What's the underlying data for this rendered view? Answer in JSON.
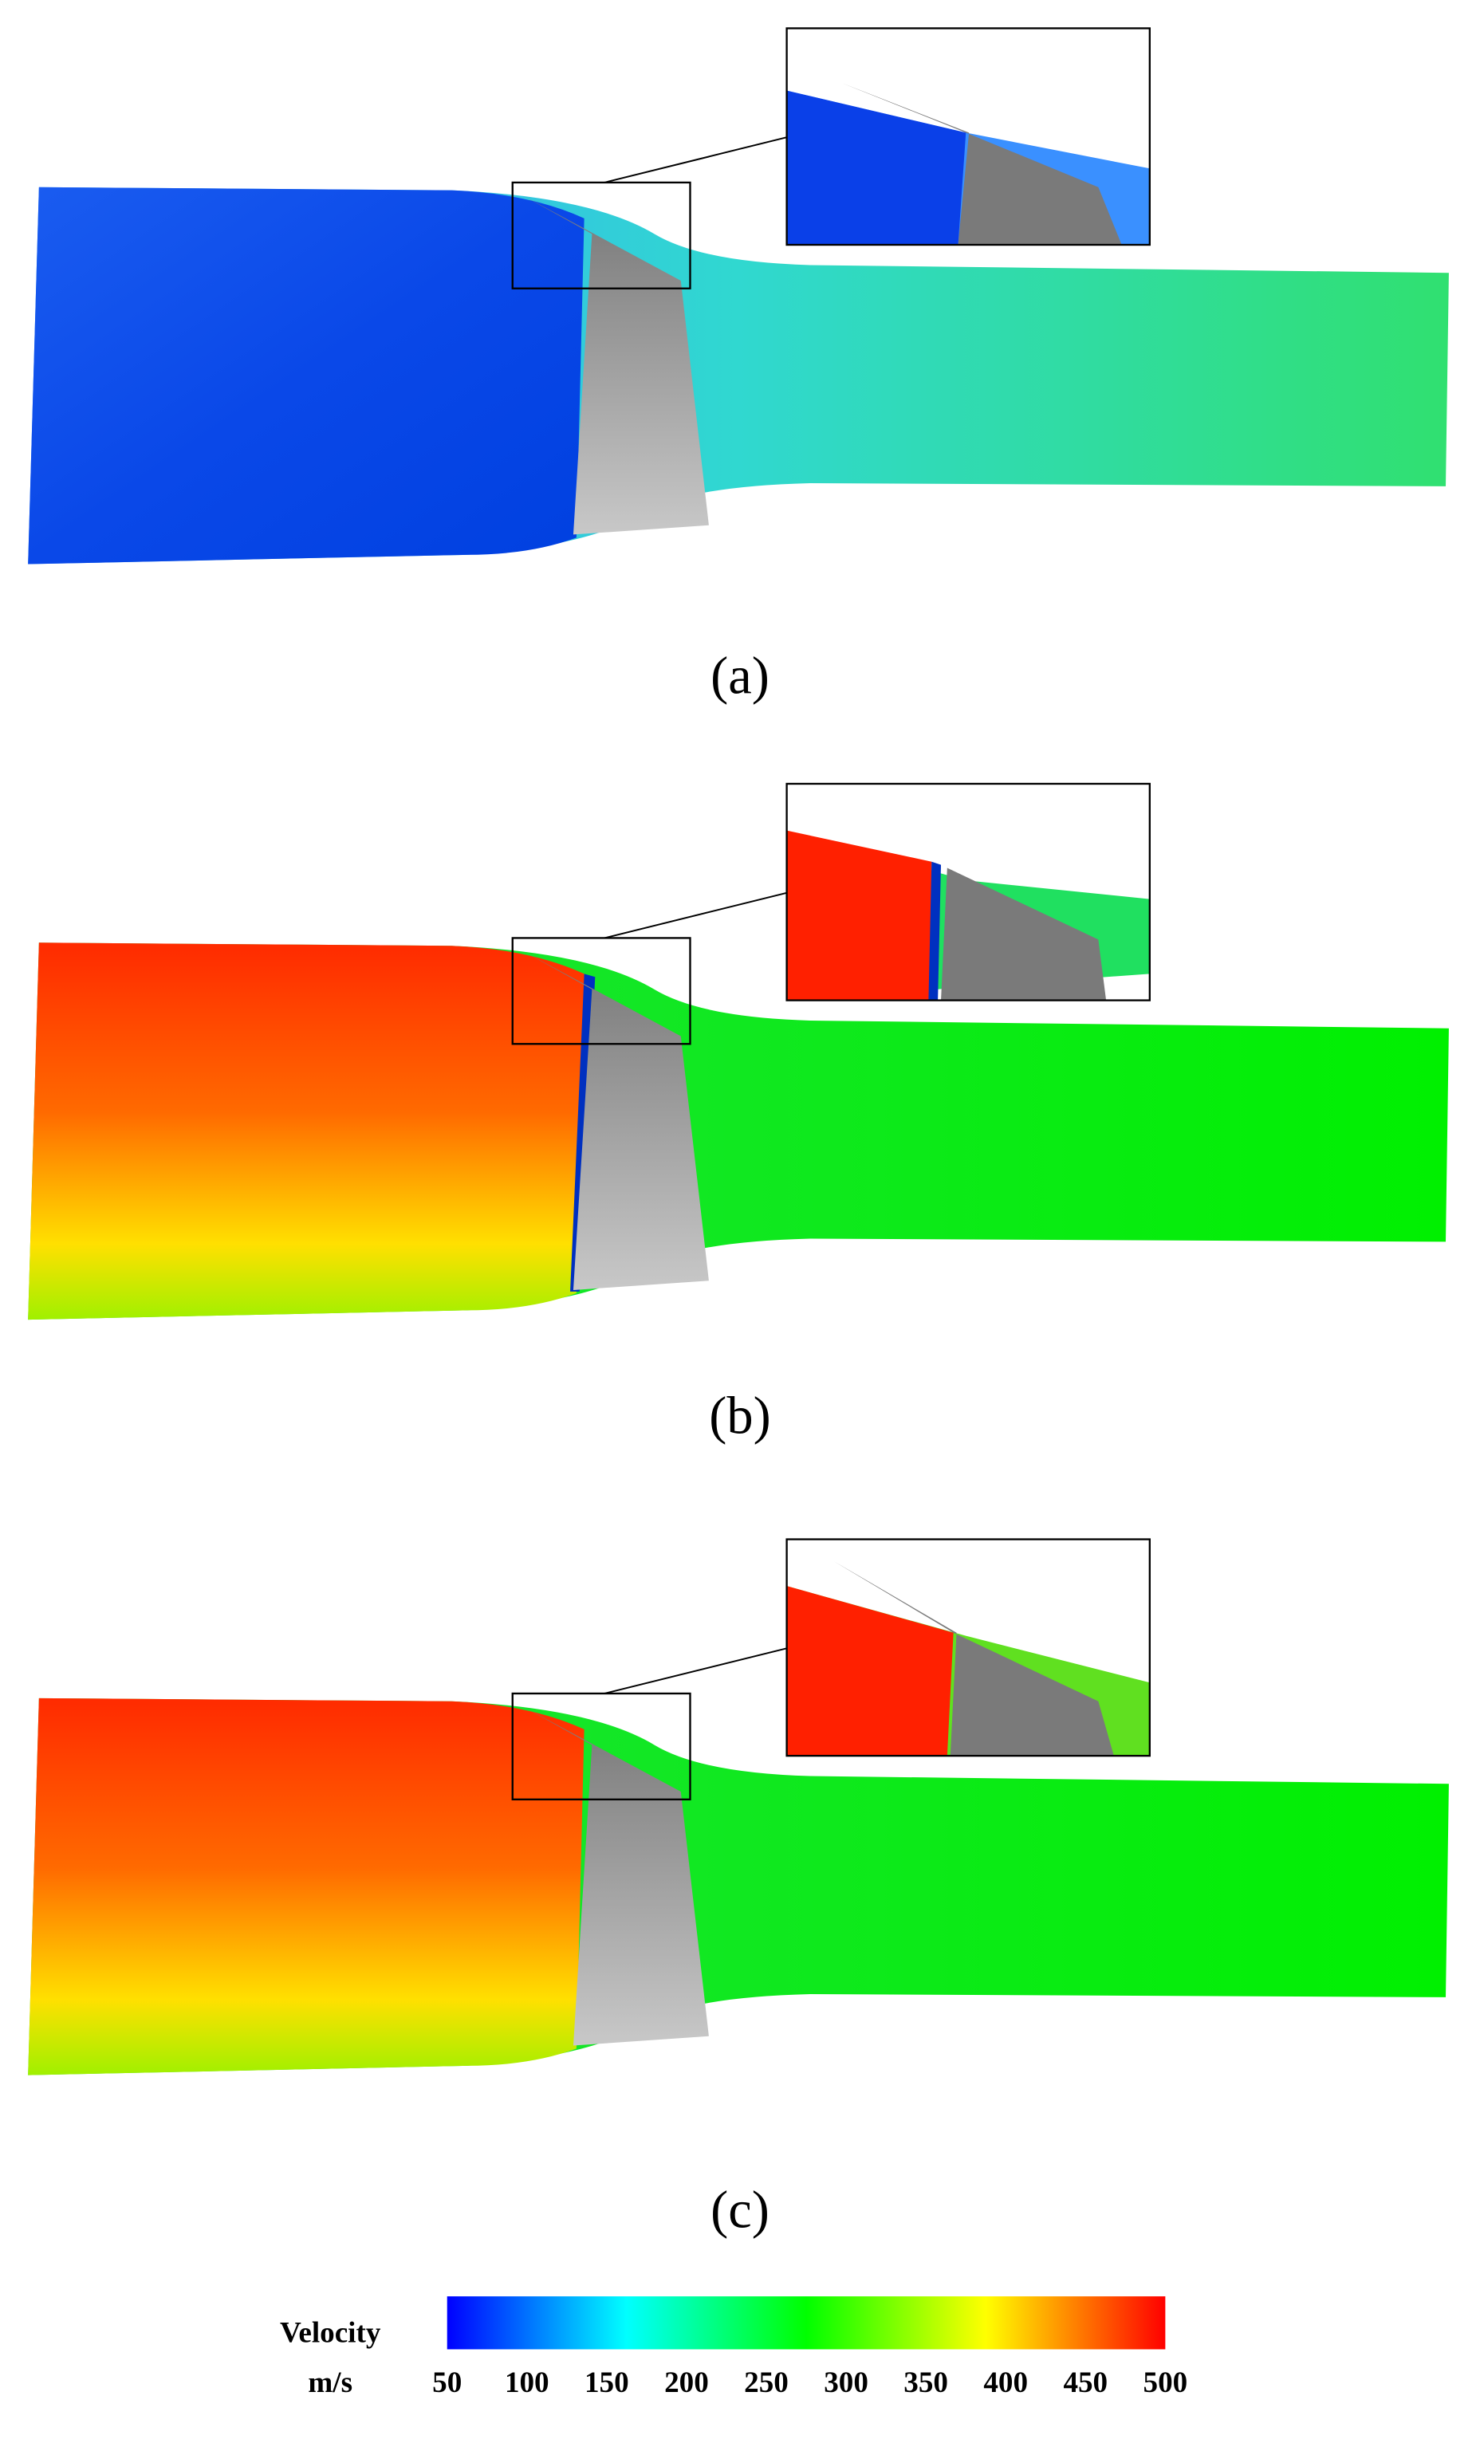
{
  "panels": [
    {
      "label": "(a)"
    },
    {
      "label": "(b)"
    },
    {
      "label": "(c)"
    }
  ],
  "colorbar": {
    "title": "Velocity",
    "unit": "m/s",
    "range": [
      50,
      500
    ],
    "ticks": [
      50,
      100,
      150,
      200,
      250,
      300,
      350,
      400,
      450,
      500
    ],
    "colors": [
      "#0000ff",
      "#00ffff",
      "#00ff00",
      "#ffff00",
      "#ff0000"
    ]
  }
}
